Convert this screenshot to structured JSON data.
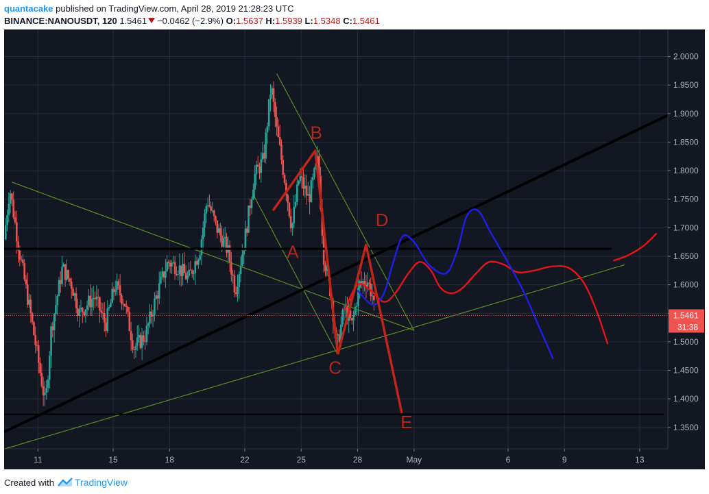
{
  "header": {
    "author": "quantacake",
    "published": "published on TradingView.com, April 28, 2019 21:28:23 UTC",
    "symbol": "BINANCE:NANOUSDT, 120",
    "last": "1.5461",
    "change": "−0.0462 (−2.9%)",
    "o_label": "O:",
    "o_value": "1.5637",
    "h_label": "H:",
    "h_value": "1.5939",
    "l_label": "L:",
    "l_value": "1.5348",
    "c_label": "C:",
    "c_value": "1.5461"
  },
  "footer": {
    "created_with": "Created with",
    "brand": "TradingView"
  },
  "colors": {
    "background": "#131722",
    "grid": "#262b3b",
    "candle_up": "#26a69a",
    "candle_down": "#ef5350",
    "wave": "#c0251a",
    "wave_label": "#b0281e",
    "green_line": "#5b8c2a",
    "blue_path": "#1e1ee6",
    "red_path": "#e0161c",
    "black_line": "#000000",
    "price_tag": "#ef5350"
  },
  "chart_data": {
    "type": "candlestick",
    "y_ticks": [
      "2.0000",
      "1.9500",
      "1.9000",
      "1.8500",
      "1.8000",
      "1.7500",
      "1.7000",
      "1.6500",
      "1.6000",
      "1.5500",
      "1.5000",
      "1.4500",
      "1.4000",
      "1.3500"
    ],
    "y_tick_values": [
      2.0,
      1.95,
      1.9,
      1.85,
      1.8,
      1.75,
      1.7,
      1.65,
      1.6,
      1.55,
      1.5,
      1.45,
      1.4,
      1.35
    ],
    "ylim": [
      1.3125,
      2.0475
    ],
    "x_ticks": [
      {
        "label": "11",
        "day": 11
      },
      {
        "label": "15",
        "day": 15
      },
      {
        "label": "18",
        "day": 18
      },
      {
        "label": "22",
        "day": 22
      },
      {
        "label": "25",
        "day": 25
      },
      {
        "label": "28",
        "day": 28
      },
      {
        "label": "May",
        "day": 31
      },
      {
        "label": "6",
        "day": 36
      },
      {
        "label": "9",
        "day": 39
      },
      {
        "label": "13",
        "day": 43
      }
    ],
    "xlim": [
      9.2,
      44.5
    ],
    "last_price": 1.5461,
    "last_price_label": "1.5461",
    "countdown": "31:38",
    "anchors": [
      [
        9.2,
        1.68
      ],
      [
        9.5,
        1.77
      ],
      [
        10.0,
        1.66
      ],
      [
        10.6,
        1.55
      ],
      [
        11.0,
        1.47
      ],
      [
        11.4,
        1.39
      ],
      [
        11.7,
        1.52
      ],
      [
        12.3,
        1.63
      ],
      [
        12.8,
        1.6
      ],
      [
        13.2,
        1.55
      ],
      [
        14.0,
        1.58
      ],
      [
        14.6,
        1.53
      ],
      [
        15.1,
        1.6
      ],
      [
        15.6,
        1.57
      ],
      [
        16.1,
        1.49
      ],
      [
        16.7,
        1.51
      ],
      [
        17.3,
        1.58
      ],
      [
        17.9,
        1.64
      ],
      [
        18.5,
        1.63
      ],
      [
        19.0,
        1.61
      ],
      [
        19.6,
        1.66
      ],
      [
        20.0,
        1.75
      ],
      [
        20.5,
        1.7
      ],
      [
        21.1,
        1.66
      ],
      [
        21.5,
        1.59
      ],
      [
        22.0,
        1.68
      ],
      [
        22.5,
        1.79
      ],
      [
        23.0,
        1.82
      ],
      [
        23.4,
        1.95
      ],
      [
        23.7,
        1.87
      ],
      [
        24.1,
        1.79
      ],
      [
        24.5,
        1.7
      ],
      [
        24.9,
        1.79
      ],
      [
        25.4,
        1.75
      ],
      [
        25.9,
        1.82
      ],
      [
        26.2,
        1.65
      ],
      [
        26.6,
        1.58
      ],
      [
        26.9,
        1.49
      ],
      [
        27.3,
        1.56
      ],
      [
        27.7,
        1.53
      ],
      [
        28.1,
        1.6
      ],
      [
        28.5,
        1.61
      ],
      [
        28.8,
        1.58
      ],
      [
        28.9,
        1.55
      ]
    ],
    "annotations": {
      "wave_labels": [
        {
          "text": "A",
          "day": 24.55,
          "y": 1.655
        },
        {
          "text": "B",
          "day": 25.8,
          "y": 1.864
        },
        {
          "text": "C",
          "day": 26.8,
          "y": 1.452
        },
        {
          "text": "D",
          "day": 29.3,
          "y": 1.711
        },
        {
          "text": "E",
          "day": 30.6,
          "y": 1.357
        }
      ],
      "wave_path": [
        [
          26.95,
          1.478
        ],
        [
          28.45,
          1.67
        ],
        [
          30.35,
          1.375
        ]
      ],
      "wave_path_b": [
        [
          23.5,
          1.73
        ],
        [
          25.75,
          1.835
        ],
        [
          26.95,
          1.478
        ]
      ],
      "black_lines": [
        {
          "from": [
            9.2,
            1.342
          ],
          "to": [
            44.5,
            1.897
          ],
          "width": 4
        },
        {
          "from": [
            9.2,
            1.663
          ],
          "to": [
            41.5,
            1.663
          ],
          "width": 3
        },
        {
          "from": [
            9.2,
            1.373
          ],
          "to": [
            44.3,
            1.373
          ],
          "width": 2
        }
      ],
      "green_lines": [
        {
          "from": [
            9.6,
            1.78
          ],
          "to": [
            31.0,
            1.52
          ]
        },
        {
          "from": [
            23.7,
            1.97
          ],
          "to": [
            31.0,
            1.52
          ]
        },
        {
          "from": [
            9.2,
            1.312
          ],
          "to": [
            42.2,
            1.635
          ]
        },
        {
          "from": [
            22.5,
            1.755
          ],
          "to": [
            26.9,
            1.48
          ]
        }
      ],
      "blue_path": [
        [
          28.0,
          1.59
        ],
        [
          28.8,
          1.565
        ],
        [
          29.4,
          1.585
        ],
        [
          29.9,
          1.64
        ],
        [
          30.4,
          1.685
        ],
        [
          31.0,
          1.675
        ],
        [
          31.8,
          1.635
        ],
        [
          32.7,
          1.62
        ],
        [
          33.3,
          1.66
        ],
        [
          33.8,
          1.72
        ],
        [
          34.4,
          1.73
        ],
        [
          35.1,
          1.69
        ],
        [
          35.9,
          1.645
        ],
        [
          36.8,
          1.59
        ],
        [
          37.6,
          1.53
        ],
        [
          38.4,
          1.47
        ]
      ],
      "red_path": [
        [
          27.3,
          1.555
        ],
        [
          28.0,
          1.6
        ],
        [
          28.7,
          1.59
        ],
        [
          29.4,
          1.57
        ],
        [
          30.0,
          1.585
        ],
        [
          30.7,
          1.62
        ],
        [
          31.3,
          1.64
        ],
        [
          31.9,
          1.625
        ],
        [
          32.4,
          1.595
        ],
        [
          33.0,
          1.585
        ],
        [
          33.6,
          1.595
        ],
        [
          34.3,
          1.62
        ],
        [
          35.0,
          1.64
        ],
        [
          35.8,
          1.635
        ],
        [
          36.5,
          1.622
        ],
        [
          37.4,
          1.625
        ],
        [
          38.3,
          1.632
        ],
        [
          39.2,
          1.63
        ],
        [
          40.0,
          1.605
        ],
        [
          40.7,
          1.555
        ],
        [
          41.3,
          1.496
        ]
      ],
      "red_path_2": [
        [
          41.6,
          1.642
        ],
        [
          42.4,
          1.652
        ],
        [
          43.2,
          1.668
        ],
        [
          43.9,
          1.69
        ]
      ]
    }
  }
}
